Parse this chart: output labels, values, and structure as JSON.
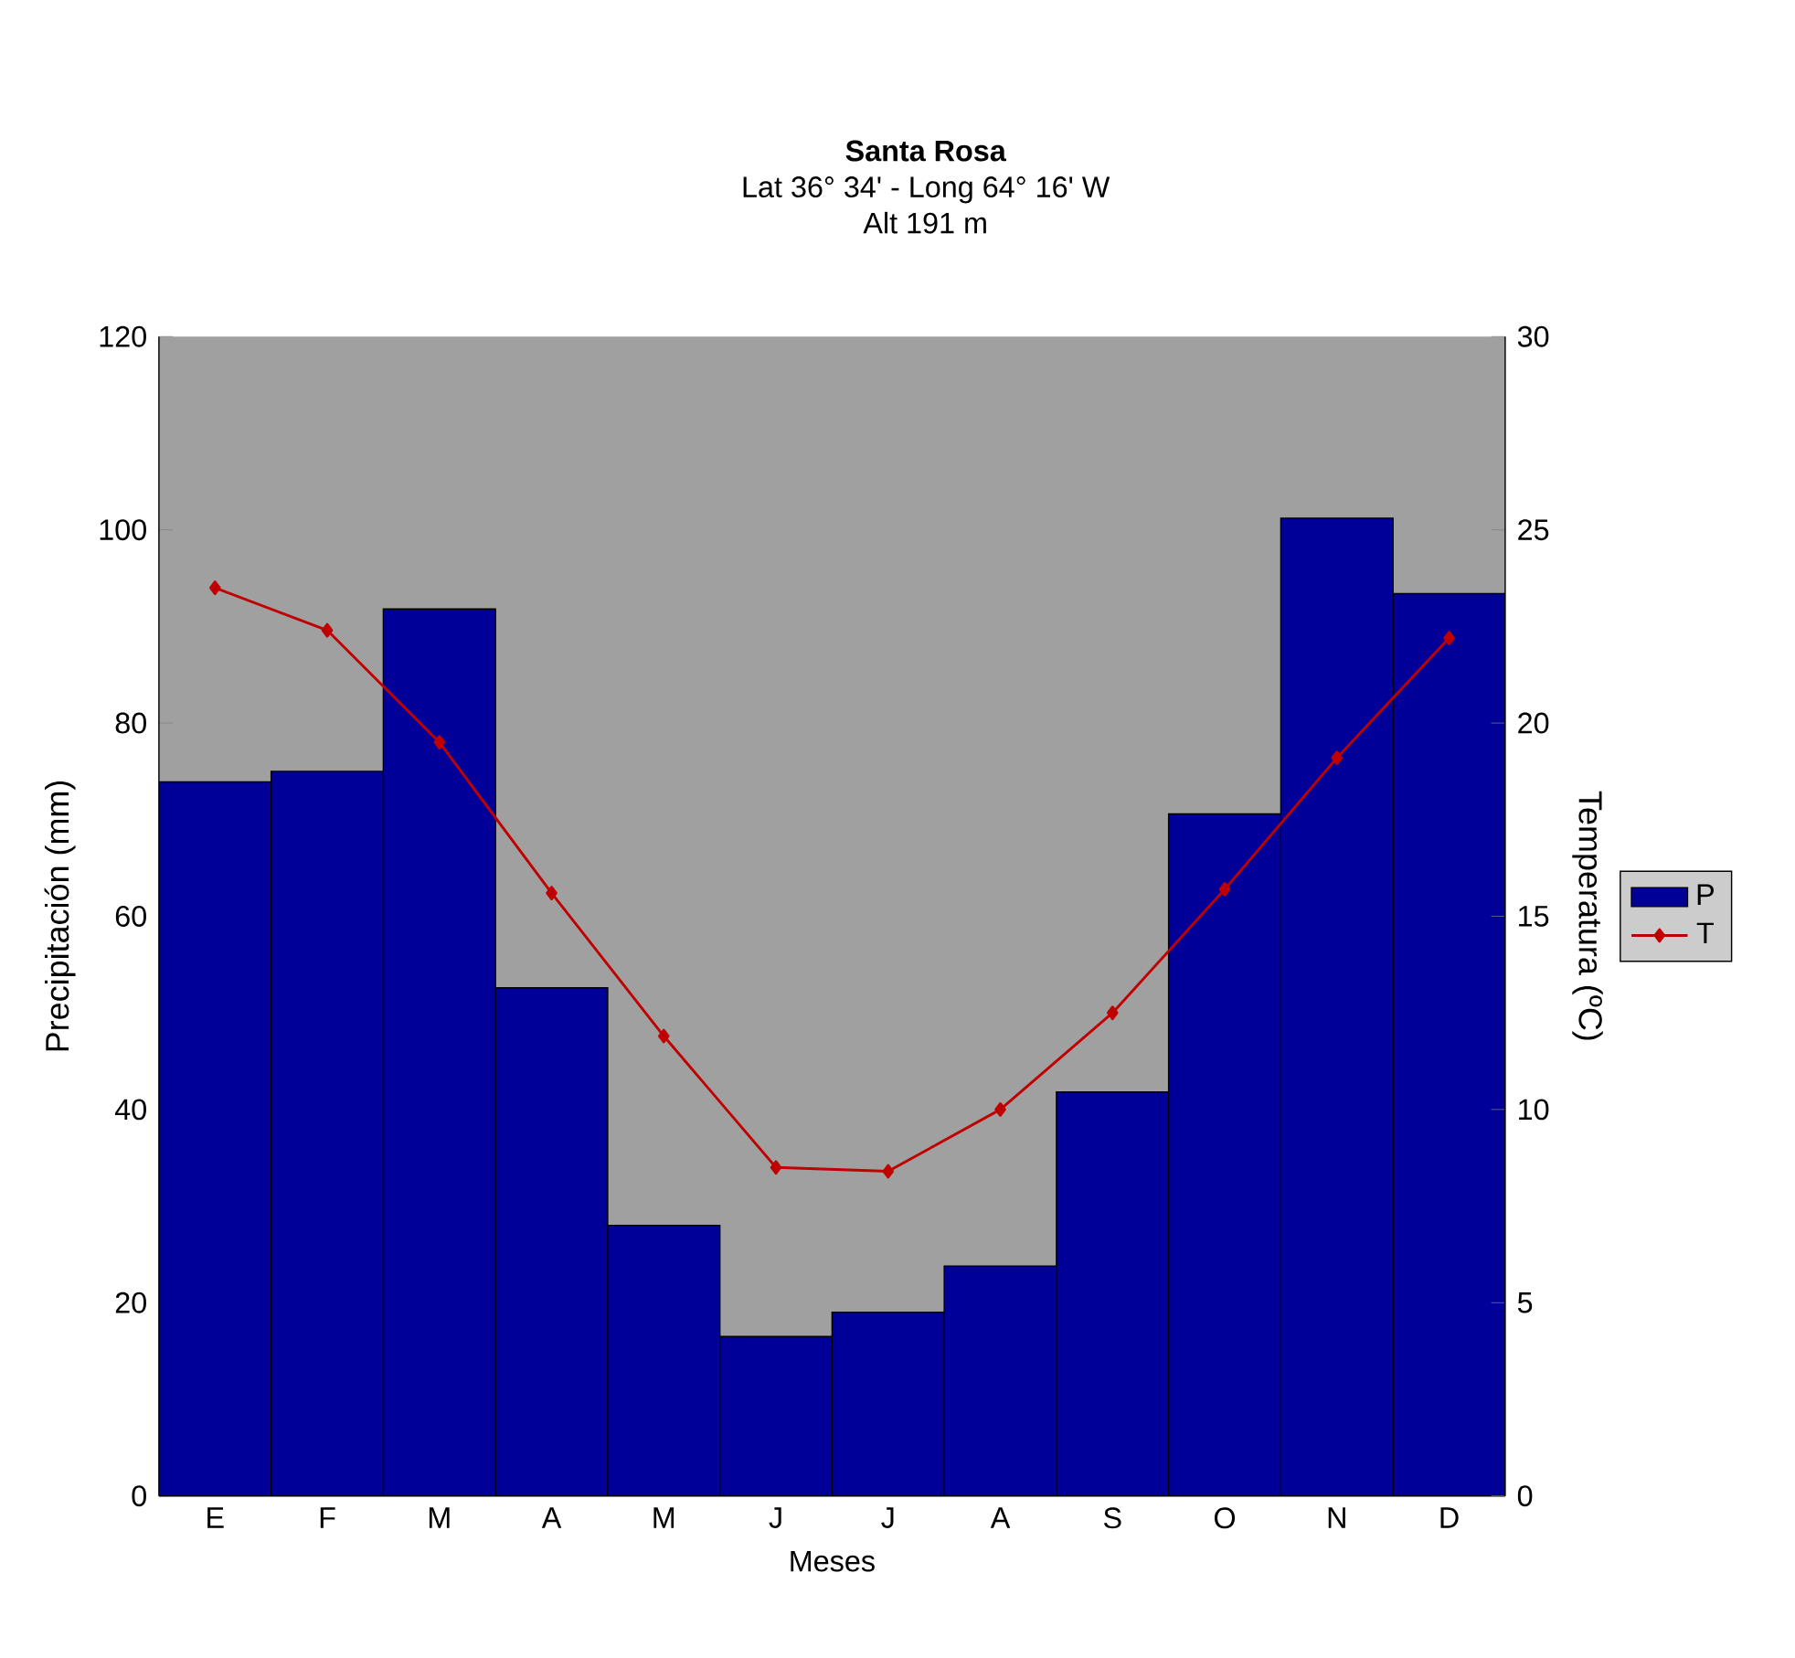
{
  "chart_data": {
    "type": "bar",
    "title": "Santa Rosa",
    "subtitle": "Lat 36° 34' - Long 64° 16' W\nAlt 191 m",
    "xlabel": "Meses",
    "ylabel": "Precipitación (mm)",
    "y2label": "Temperatura (ºC)",
    "categories": [
      "E",
      "F",
      "M",
      "A",
      "M",
      "J",
      "J",
      "A",
      "S",
      "O",
      "N",
      "D"
    ],
    "series": [
      {
        "name": "P",
        "type": "bar",
        "color": "#000099",
        "values": [
          73.9,
          75,
          91.8,
          52.6,
          28,
          16.5,
          19,
          23.8,
          41.8,
          70.6,
          101.2,
          93.4
        ]
      },
      {
        "name": "T",
        "type": "line",
        "axis": "y2",
        "color": "#c00000",
        "marker": "diamond",
        "values": [
          23.5,
          22.4,
          19.5,
          15.6,
          11.9,
          8.5,
          8.4,
          10.0,
          12.5,
          15.7,
          19.1,
          22.2
        ]
      }
    ],
    "ylim": [
      0,
      120
    ],
    "yticks": [
      0,
      20,
      40,
      60,
      80,
      100,
      120
    ],
    "y2lim": [
      0,
      30
    ],
    "y2ticks": [
      0,
      5,
      10,
      15,
      20,
      25,
      30
    ],
    "grid": false,
    "legend": "right"
  }
}
